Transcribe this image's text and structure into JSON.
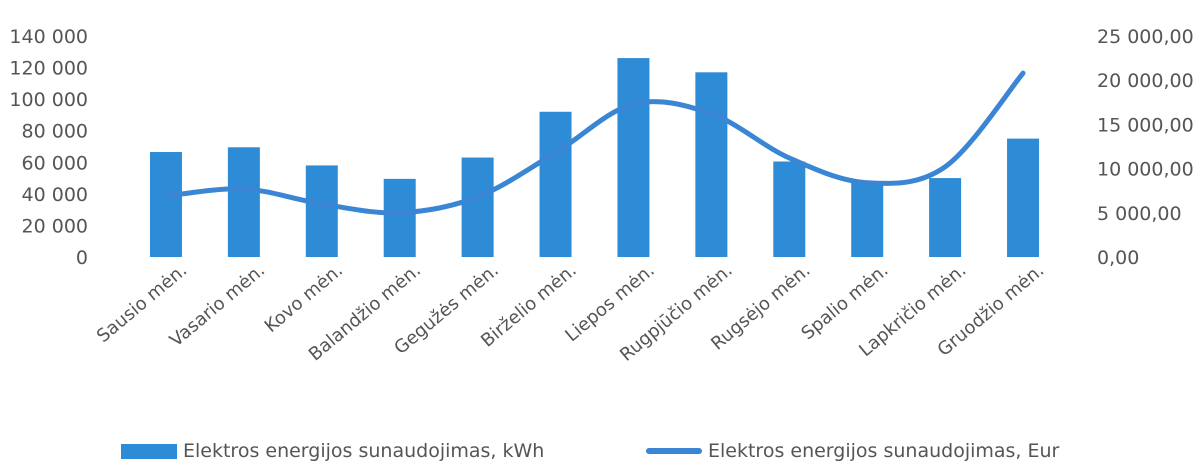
{
  "chart_data": {
    "type": "bar",
    "categories": [
      "Sausio mėn.",
      "Vasario mėn.",
      "Kovo mėn.",
      "Balandžio mėn.",
      "Gegužės mėn.",
      "Birželio mėn.",
      "Liepos mėn.",
      "Rugpjūčio mėn.",
      "Rugsėjo mėn.",
      "Spalio mėn.",
      "Lapkričio mėn.",
      "Gruodžio mėn."
    ],
    "series": [
      {
        "name": "Elektros energijos sunaudojimas, kWh",
        "type": "bar",
        "axis": "left",
        "color": "#2e8bd6",
        "values": [
          66500,
          69500,
          58000,
          49500,
          63000,
          92000,
          126000,
          117000,
          60500,
          47000,
          50000,
          75000
        ]
      },
      {
        "name": "Elektros energijos sunaudojimas, Eur",
        "type": "line",
        "axis": "right",
        "color": "#3b86d4",
        "values": [
          6900,
          7700,
          6000,
          5000,
          6800,
          11800,
          17300,
          16200,
          11200,
          8400,
          10200,
          20800
        ]
      }
    ],
    "left_axis": {
      "ylim": [
        0,
        140000
      ],
      "ticks": [
        "0",
        "20 000",
        "40 000",
        "60 000",
        "80 000",
        "100 000",
        "120 000",
        "140 000"
      ]
    },
    "right_axis": {
      "ylim": [
        0,
        25000
      ],
      "ticks": [
        "0,00",
        "5 000,00",
        "10 000,00",
        "15 000,00",
        "20 000,00",
        "25 000,00"
      ]
    },
    "grid": false,
    "legend_position": "bottom"
  }
}
